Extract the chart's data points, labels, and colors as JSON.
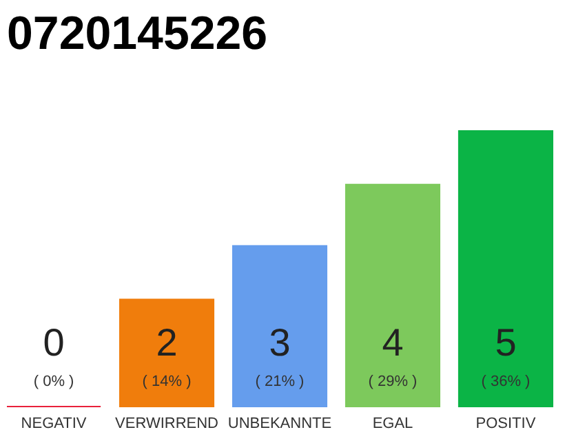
{
  "chart_data": {
    "type": "bar",
    "title": "0720145226",
    "categories": [
      "NEGATIV",
      "VERWIRREND",
      "UNBEKANNTE",
      "EGAL",
      "POSITIV"
    ],
    "values": [
      0,
      14,
      21,
      29,
      36
    ],
    "colors": [
      "#e8213a",
      "#f07d0c",
      "#659ded",
      "#7dc95c",
      "#0bb446"
    ],
    "value_labels": [
      "( 0% )",
      "( 14% )",
      "( 21% )",
      "( 29% )",
      "( 36% )"
    ],
    "annotations": [
      "0",
      "2",
      "3",
      "4",
      "5"
    ]
  }
}
